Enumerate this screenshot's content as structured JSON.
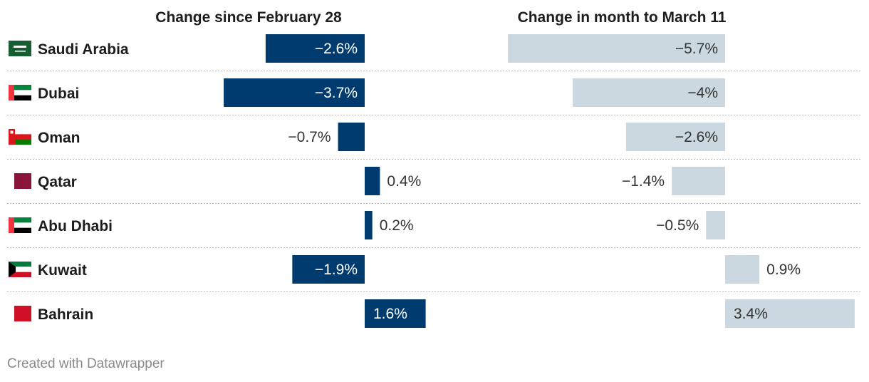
{
  "chart_data": {
    "type": "bar",
    "columns": [
      {
        "title": "Change since February 28",
        "color": "#003b6f",
        "label_color_inside": "#ffffff"
      },
      {
        "title": "Change in month to March 11",
        "color": "#cbd8e0",
        "label_color_inside": "#333333"
      }
    ],
    "rows": [
      {
        "name": "Saudi Arabia",
        "flag": "saudi-arabia-flag-icon",
        "values": [
          -2.6,
          -5.7
        ],
        "labels": [
          "−2.6%",
          "−5.7%"
        ]
      },
      {
        "name": "Dubai",
        "flag": "uae-flag-icon",
        "values": [
          -3.7,
          -4.0
        ],
        "labels": [
          "−3.7%",
          "−4%"
        ]
      },
      {
        "name": "Oman",
        "flag": "oman-flag-icon",
        "values": [
          -0.7,
          -2.6
        ],
        "labels": [
          "−0.7%",
          "−2.6%"
        ]
      },
      {
        "name": "Qatar",
        "flag": "qatar-flag-icon",
        "values": [
          0.4,
          -1.4
        ],
        "labels": [
          "0.4%",
          "−1.4%"
        ]
      },
      {
        "name": "Abu Dhabi",
        "flag": "uae-flag-icon",
        "values": [
          0.2,
          -0.5
        ],
        "labels": [
          "0.2%",
          "−0.5%"
        ]
      },
      {
        "name": "Kuwait",
        "flag": "kuwait-flag-icon",
        "values": [
          -1.9,
          0.9
        ],
        "labels": [
          "−1.9%",
          "0.9%"
        ]
      },
      {
        "name": "Bahrain",
        "flag": "bahrain-flag-icon",
        "values": [
          1.6,
          3.4
        ],
        "labels": [
          "1.6%",
          "3.4%"
        ]
      }
    ]
  },
  "footer": {
    "credit": "Created with Datawrapper"
  }
}
